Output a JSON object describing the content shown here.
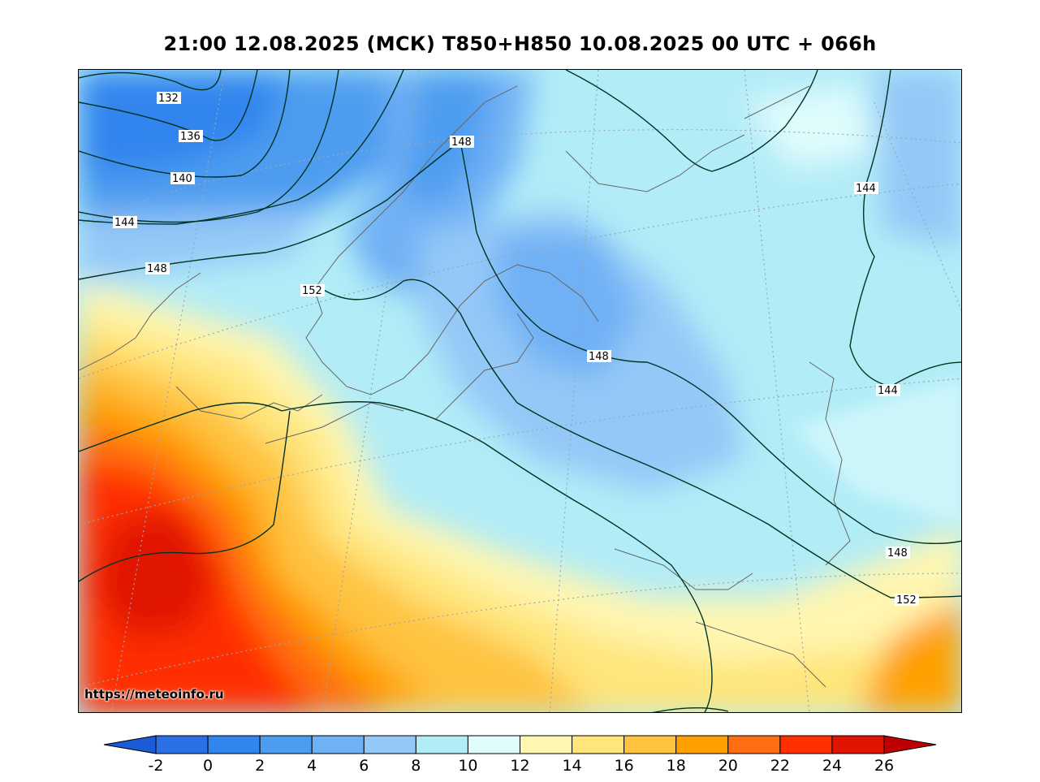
{
  "header": {
    "title": "21:00 12.08.2025 (МСК) T850+H850 10.08.2025 00 UTC + 066h"
  },
  "map": {
    "source_url": "https://meteoinfo.ru",
    "height_contours": [
      {
        "value": "132",
        "label": "132"
      },
      {
        "value": "136",
        "label": "136"
      },
      {
        "value": "140",
        "label": "140"
      },
      {
        "value": "144",
        "label": "144"
      },
      {
        "value": "148",
        "label": "148"
      },
      {
        "value": "152",
        "label": "152"
      }
    ],
    "contour_labels": [
      "132",
      "136",
      "140",
      "144",
      "148",
      "152",
      "148",
      "148",
      "144",
      "144",
      "148",
      "152"
    ]
  },
  "colorbar": {
    "ticks": [
      "-2",
      "0",
      "2",
      "4",
      "6",
      "8",
      "10",
      "12",
      "14",
      "16",
      "18",
      "20",
      "22",
      "24",
      "26"
    ],
    "colors": [
      "#2a6fe6",
      "#3385ee",
      "#4d9cf0",
      "#6fb1f5",
      "#94c8f7",
      "#b2ecf7",
      "#e0fdfd",
      "#fff6b0",
      "#ffe57a",
      "#ffc340",
      "#ffa000",
      "#ff6e10",
      "#ff2f00",
      "#e01400"
    ],
    "under_color": "#1a5cd8",
    "over_color": "#c00000"
  }
}
